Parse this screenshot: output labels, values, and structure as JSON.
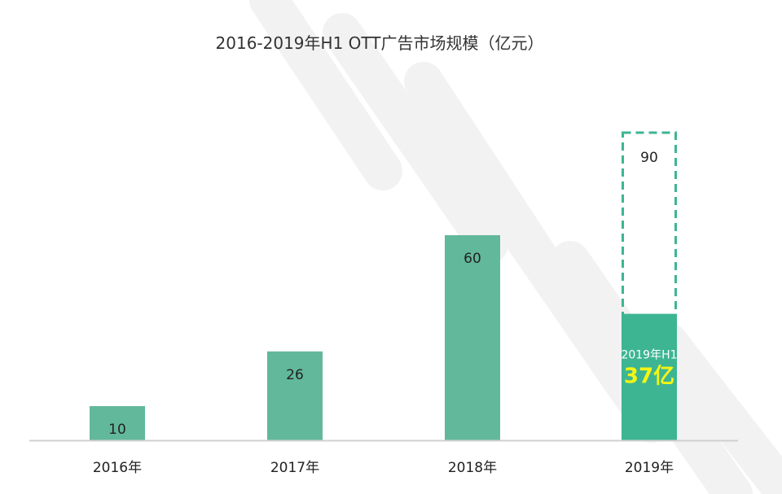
{
  "chart_data": {
    "type": "bar",
    "title": "2016-2019年H1 OTT广告市场规模（亿元）",
    "xlabel": "",
    "ylabel": "",
    "categories": [
      "2016年",
      "2017年",
      "2018年",
      "2019年"
    ],
    "values": [
      10,
      26,
      60,
      90
    ],
    "value_labels": [
      "10",
      "26",
      "60",
      "90"
    ],
    "forecast_category_index": 3,
    "partial": {
      "value": 37,
      "label": "2019年H1",
      "value_label": "37亿"
    },
    "ylim": [
      0,
      100
    ],
    "grid": false,
    "legend": "none"
  },
  "colors": {
    "bar": "#62b89b",
    "partial_bar": "#3db593",
    "dashed_outline": "#3db593",
    "axis": "#d0d0d0",
    "highlight_text": "#f5f514",
    "watermark": "#f2f2f2"
  }
}
